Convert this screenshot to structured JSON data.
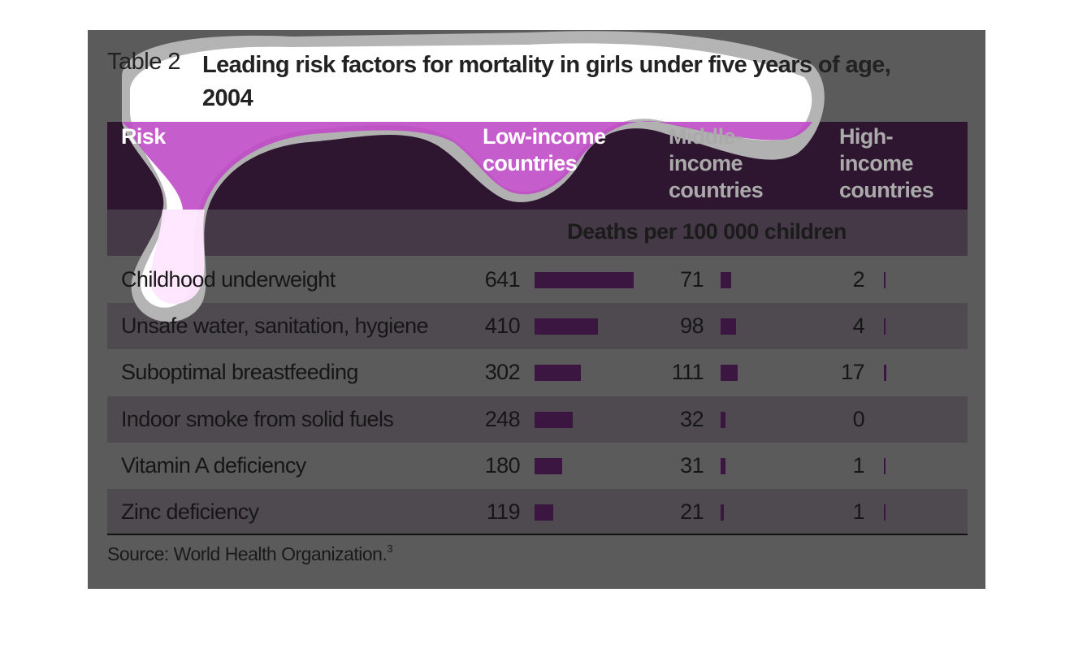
{
  "table": {
    "label": "Table 2",
    "title": "Leading risk factors for mortality in girls under five years of age, 2004",
    "columns": [
      "Risk",
      "Low-income countries",
      "Middle-income countries",
      "High-income countries"
    ],
    "unit_row": "Deaths per 100 000 children",
    "rows": [
      [
        "Childhood underweight",
        641,
        71,
        2
      ],
      [
        "Unsafe water, sanitation, hygiene",
        410,
        98,
        4
      ],
      [
        "Suboptimal breastfeeding",
        302,
        111,
        17
      ],
      [
        "Indoor smoke from solid fuels",
        248,
        32,
        0
      ],
      [
        "Vitamin A deficiency",
        180,
        31,
        1
      ],
      [
        "Zinc deficiency",
        119,
        21,
        1
      ]
    ],
    "source": "Source: World Health Organization.",
    "source_note": "3"
  }
}
